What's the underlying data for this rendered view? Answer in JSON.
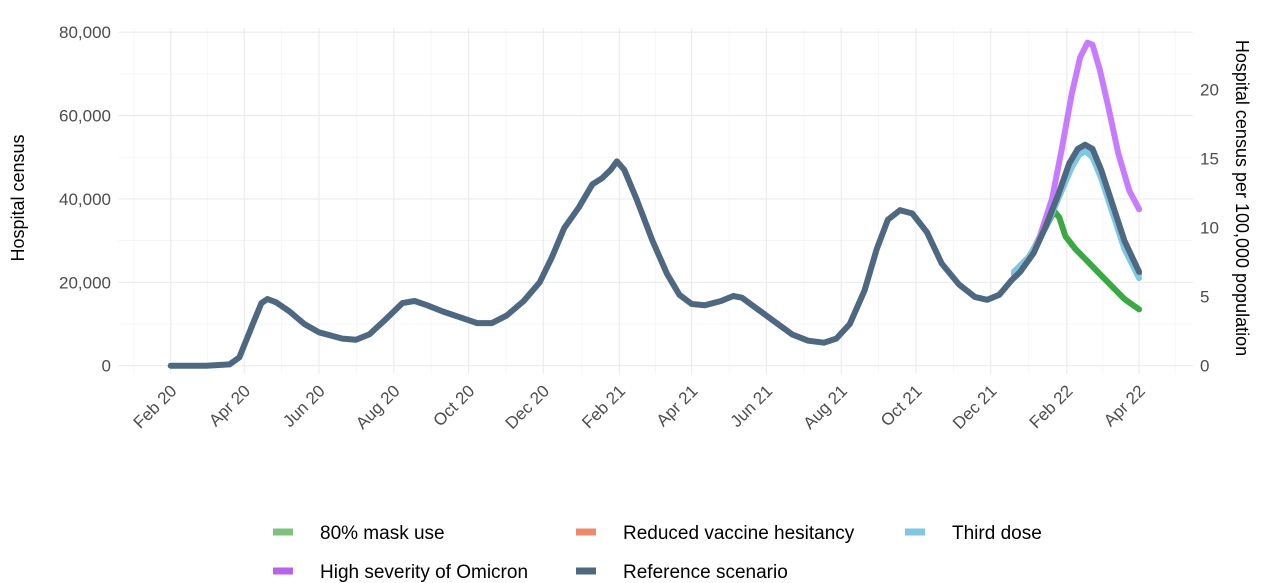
{
  "chart_data": {
    "type": "line",
    "ylabel": "Hospital census",
    "y2label": "Hospital census per 100,000 population",
    "ylim": [
      -2000,
      81000
    ],
    "y_ticks": [
      0,
      20000,
      40000,
      60000,
      80000
    ],
    "y_tick_labels": [
      "0",
      "20,000",
      "40,000",
      "60,000",
      "80,000"
    ],
    "y2_ticks": [
      0,
      5,
      10,
      15,
      20
    ],
    "y2_tick_labels": [
      "0",
      "5",
      "10",
      "15",
      "20"
    ],
    "y2_per_y": 0.000302,
    "xlim": [
      "2019-12-20",
      "2022-05-15"
    ],
    "x_ticks": [
      "2020-02-01",
      "2020-04-01",
      "2020-06-01",
      "2020-08-01",
      "2020-10-01",
      "2020-12-01",
      "2021-02-01",
      "2021-04-01",
      "2021-06-01",
      "2021-08-01",
      "2021-10-01",
      "2021-12-01",
      "2022-02-01",
      "2022-04-01"
    ],
    "x_tick_labels": [
      "Feb 20",
      "Apr 20",
      "Jun 20",
      "Aug 20",
      "Oct 20",
      "Dec 20",
      "Feb 21",
      "Apr 21",
      "Jun 21",
      "Aug 21",
      "Oct 21",
      "Dec 21",
      "Feb 22",
      "Apr 22"
    ],
    "grid": true,
    "legend_position": "bottom",
    "series": [
      {
        "name": "80% mask use",
        "color": "#3aa843",
        "points": [
          [
            "2021-12-20",
            22500
          ],
          [
            "2022-01-01",
            26000
          ],
          [
            "2022-01-10",
            30500
          ],
          [
            "2022-01-18",
            35000
          ],
          [
            "2022-01-22",
            37000
          ],
          [
            "2022-01-26",
            35500
          ],
          [
            "2022-01-31",
            31000
          ],
          [
            "2022-02-08",
            28000
          ],
          [
            "2022-02-18",
            25000
          ],
          [
            "2022-02-28",
            22000
          ],
          [
            "2022-03-10",
            19000
          ],
          [
            "2022-03-20",
            16000
          ],
          [
            "2022-04-01",
            13500
          ]
        ]
      },
      {
        "name": "High severity of Omicron",
        "color": "#c77cff",
        "points": [
          [
            "2021-12-20",
            22000
          ],
          [
            "2022-01-01",
            25500
          ],
          [
            "2022-01-10",
            31000
          ],
          [
            "2022-01-20",
            40000
          ],
          [
            "2022-01-28",
            52000
          ],
          [
            "2022-02-05",
            65000
          ],
          [
            "2022-02-12",
            74000
          ],
          [
            "2022-02-18",
            77500
          ],
          [
            "2022-02-22",
            77000
          ],
          [
            "2022-02-28",
            71000
          ],
          [
            "2022-03-07",
            62000
          ],
          [
            "2022-03-15",
            51000
          ],
          [
            "2022-03-24",
            42000
          ],
          [
            "2022-04-01",
            37500
          ]
        ]
      },
      {
        "name": "Reduced vaccine hesitancy",
        "color": "#f8766d",
        "points": [
          [
            "2021-12-20",
            22500
          ],
          [
            "2022-01-01",
            26000
          ],
          [
            "2022-01-10",
            30500
          ],
          [
            "2022-01-20",
            37000
          ],
          [
            "2022-01-28",
            43000
          ],
          [
            "2022-02-05",
            48500
          ],
          [
            "2022-02-11",
            51500
          ],
          [
            "2022-02-16",
            52500
          ],
          [
            "2022-02-22",
            51000
          ],
          [
            "2022-03-01",
            46000
          ],
          [
            "2022-03-10",
            38000
          ],
          [
            "2022-03-20",
            29000
          ],
          [
            "2022-04-01",
            22000
          ]
        ]
      },
      {
        "name": "Third dose",
        "color": "#7ec8e3",
        "points": [
          [
            "2021-12-20",
            22500
          ],
          [
            "2022-01-01",
            26000
          ],
          [
            "2022-01-10",
            30500
          ],
          [
            "2022-01-20",
            36500
          ],
          [
            "2022-01-28",
            42000
          ],
          [
            "2022-02-05",
            47500
          ],
          [
            "2022-02-11",
            50500
          ],
          [
            "2022-02-16",
            51500
          ],
          [
            "2022-02-22",
            50000
          ],
          [
            "2022-03-01",
            45000
          ],
          [
            "2022-03-10",
            37000
          ],
          [
            "2022-03-20",
            28000
          ],
          [
            "2022-04-01",
            21000
          ]
        ]
      },
      {
        "name": "Reference scenario",
        "color": "#4d6880",
        "points": [
          [
            "2020-02-01",
            0
          ],
          [
            "2020-03-01",
            0
          ],
          [
            "2020-03-20",
            300
          ],
          [
            "2020-03-28",
            2000
          ],
          [
            "2020-04-08",
            10000
          ],
          [
            "2020-04-15",
            15000
          ],
          [
            "2020-04-20",
            16000
          ],
          [
            "2020-04-27",
            15200
          ],
          [
            "2020-05-08",
            13000
          ],
          [
            "2020-05-20",
            10000
          ],
          [
            "2020-06-01",
            8000
          ],
          [
            "2020-06-20",
            6500
          ],
          [
            "2020-07-01",
            6200
          ],
          [
            "2020-07-12",
            7500
          ],
          [
            "2020-07-25",
            11000
          ],
          [
            "2020-08-08",
            15000
          ],
          [
            "2020-08-18",
            15500
          ],
          [
            "2020-08-28",
            14500
          ],
          [
            "2020-09-10",
            13000
          ],
          [
            "2020-09-25",
            11500
          ],
          [
            "2020-10-08",
            10200
          ],
          [
            "2020-10-20",
            10200
          ],
          [
            "2020-11-01",
            12000
          ],
          [
            "2020-11-15",
            15500
          ],
          [
            "2020-11-28",
            20000
          ],
          [
            "2020-12-08",
            26000
          ],
          [
            "2020-12-18",
            33000
          ],
          [
            "2020-12-30",
            38000
          ],
          [
            "2021-01-10",
            43500
          ],
          [
            "2021-01-18",
            45000
          ],
          [
            "2021-01-25",
            47000
          ],
          [
            "2021-01-30",
            49000
          ],
          [
            "2021-02-05",
            47000
          ],
          [
            "2021-02-15",
            40000
          ],
          [
            "2021-02-28",
            30000
          ],
          [
            "2021-03-12",
            22000
          ],
          [
            "2021-03-22",
            17000
          ],
          [
            "2021-04-01",
            14800
          ],
          [
            "2021-04-12",
            14500
          ],
          [
            "2021-04-25",
            15500
          ],
          [
            "2021-05-05",
            16700
          ],
          [
            "2021-05-12",
            16300
          ],
          [
            "2021-05-25",
            13500
          ],
          [
            "2021-06-08",
            10500
          ],
          [
            "2021-06-22",
            7500
          ],
          [
            "2021-07-05",
            6000
          ],
          [
            "2021-07-18",
            5500
          ],
          [
            "2021-07-28",
            6500
          ],
          [
            "2021-08-08",
            10000
          ],
          [
            "2021-08-20",
            18000
          ],
          [
            "2021-08-30",
            28000
          ],
          [
            "2021-09-08",
            35000
          ],
          [
            "2021-09-18",
            37300
          ],
          [
            "2021-09-28",
            36500
          ],
          [
            "2021-10-10",
            32000
          ],
          [
            "2021-10-22",
            24500
          ],
          [
            "2021-11-05",
            19500
          ],
          [
            "2021-11-18",
            16500
          ],
          [
            "2021-11-28",
            15800
          ],
          [
            "2021-12-08",
            17000
          ],
          [
            "2021-12-18",
            20500
          ],
          [
            "2021-12-25",
            22500
          ],
          [
            "2022-01-05",
            27000
          ],
          [
            "2022-01-15",
            33500
          ],
          [
            "2022-01-25",
            41000
          ],
          [
            "2022-02-03",
            48500
          ],
          [
            "2022-02-10",
            52000
          ],
          [
            "2022-02-16",
            53000
          ],
          [
            "2022-02-22",
            52000
          ],
          [
            "2022-03-01",
            47000
          ],
          [
            "2022-03-10",
            39000
          ],
          [
            "2022-03-20",
            30000
          ],
          [
            "2022-04-01",
            22500
          ]
        ]
      }
    ],
    "legend": [
      {
        "name": "80% mask use",
        "color": "#7dc37f"
      },
      {
        "name": "Reduced vaccine hesitancy",
        "color": "#ec8a6c"
      },
      {
        "name": "Third dose",
        "color": "#7ec8e3"
      },
      {
        "name": "High severity of Omicron",
        "color": "#b962ee"
      },
      {
        "name": "Reference scenario",
        "color": "#4d6880"
      }
    ]
  }
}
